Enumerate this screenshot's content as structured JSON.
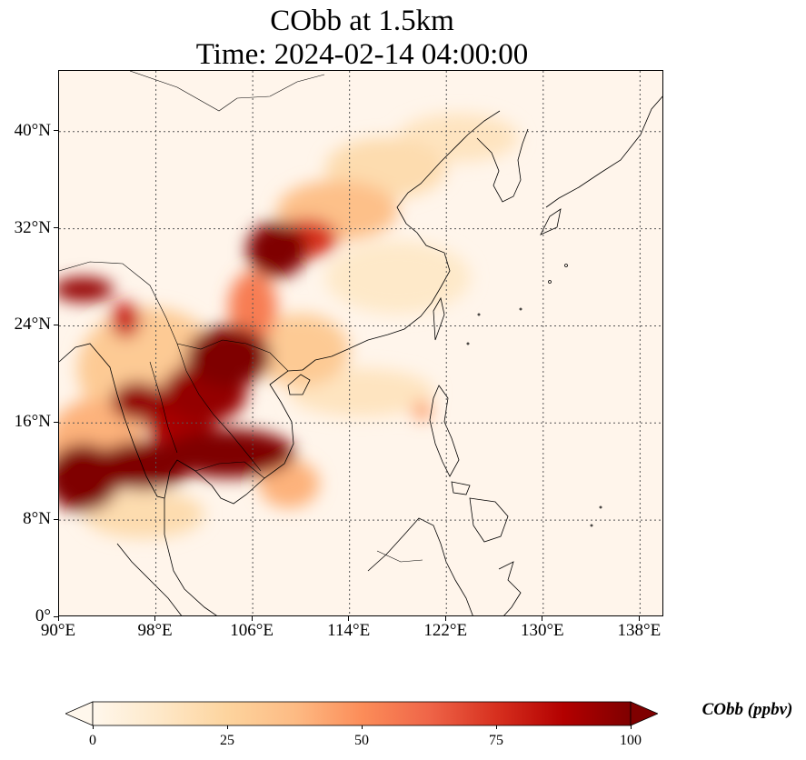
{
  "figure": {
    "title_line1": "CObb at 1.5km",
    "title_line2": "Time: 2024-02-14 04:00:00"
  },
  "map": {
    "projection": "PlateCarree",
    "lon_range": [
      90,
      140
    ],
    "lat_range": [
      0,
      45
    ],
    "gridlines": "dotted",
    "lat_ticks": [
      {
        "value": 0,
        "label": "0°"
      },
      {
        "value": 8,
        "label": "8°N"
      },
      {
        "value": 16,
        "label": "16°N"
      },
      {
        "value": 24,
        "label": "24°N"
      },
      {
        "value": 32,
        "label": "32°N"
      },
      {
        "value": 40,
        "label": "40°N"
      }
    ],
    "lon_ticks": [
      {
        "value": 90,
        "label": "90°E"
      },
      {
        "value": 98,
        "label": "98°E"
      },
      {
        "value": 106,
        "label": "106°E"
      },
      {
        "value": 114,
        "label": "114°E"
      },
      {
        "value": 122,
        "label": "122°E"
      },
      {
        "value": 130,
        "label": "130°E"
      },
      {
        "value": 138,
        "label": "138°E"
      }
    ],
    "field_regions": [
      {
        "lon": 108,
        "lat": 30.3,
        "rlon": 2.5,
        "rlat": 2.3,
        "value": 100
      },
      {
        "lon": 110.5,
        "lat": 31.2,
        "rlon": 2.5,
        "rlat": 1.6,
        "value": 75
      },
      {
        "lon": 113,
        "lat": 33.5,
        "rlon": 5,
        "rlat": 2.5,
        "value": 35
      },
      {
        "lon": 117,
        "lat": 37,
        "rlon": 5,
        "rlat": 2.5,
        "value": 20
      },
      {
        "lon": 123,
        "lat": 39.5,
        "rlon": 5,
        "rlat": 2,
        "value": 15
      },
      {
        "lon": 106,
        "lat": 25.5,
        "rlon": 2,
        "rlat": 3,
        "value": 55
      },
      {
        "lon": 104,
        "lat": 21.5,
        "rlon": 3.5,
        "rlat": 2.5,
        "value": 100
      },
      {
        "lon": 102,
        "lat": 18.5,
        "rlon": 3.5,
        "rlat": 2.5,
        "value": 95
      },
      {
        "lon": 100,
        "lat": 16.5,
        "rlon": 3,
        "rlat": 2.5,
        "value": 90
      },
      {
        "lon": 96.5,
        "lat": 17.8,
        "rlon": 2.2,
        "rlat": 1.6,
        "value": 95
      },
      {
        "lon": 104,
        "lat": 13.5,
        "rlon": 5.5,
        "rlat": 2,
        "value": 100
      },
      {
        "lon": 97,
        "lat": 12.5,
        "rlon": 4,
        "rlat": 2,
        "value": 100
      },
      {
        "lon": 92,
        "lat": 11.5,
        "rlon": 3,
        "rlat": 2.8,
        "value": 100
      },
      {
        "lon": 92,
        "lat": 27,
        "rlon": 2.5,
        "rlat": 1,
        "value": 95
      },
      {
        "lon": 95.5,
        "lat": 24.5,
        "rlon": 1.2,
        "rlat": 1.5,
        "value": 80
      },
      {
        "lon": 97.5,
        "lat": 20.5,
        "rlon": 6,
        "rlat": 5,
        "value": 30
      },
      {
        "lon": 110,
        "lat": 22,
        "rlon": 4,
        "rlat": 3,
        "value": 30
      },
      {
        "lon": 115,
        "lat": 18.5,
        "rlon": 6,
        "rlat": 2,
        "value": 15
      },
      {
        "lon": 120,
        "lat": 17,
        "rlon": 0.8,
        "rlat": 0.8,
        "value": 45
      },
      {
        "lon": 93,
        "lat": 14,
        "rlon": 4,
        "rlat": 4,
        "value": 40
      },
      {
        "lon": 97,
        "lat": 8.5,
        "rlon": 5,
        "rlat": 2,
        "value": 20
      },
      {
        "lon": 109,
        "lat": 11,
        "rlon": 2.5,
        "rlat": 2,
        "value": 40
      },
      {
        "lon": 118,
        "lat": 28,
        "rlon": 6,
        "rlat": 3,
        "value": 12
      }
    ]
  },
  "colorbar": {
    "label": "CObb (ppbv)",
    "min": 0,
    "max": 100,
    "extend": "both",
    "cmap": "OrRd",
    "colors": [
      "#fff7ec",
      "#fee8c8",
      "#fdd49e",
      "#fdbb84",
      "#fc8d59",
      "#ef6548",
      "#d7301f",
      "#b30000",
      "#7f0000"
    ],
    "ticks": [
      {
        "value": 0,
        "label": "0"
      },
      {
        "value": 25,
        "label": "25"
      },
      {
        "value": 50,
        "label": "50"
      },
      {
        "value": 75,
        "label": "75"
      },
      {
        "value": 100,
        "label": "100"
      }
    ]
  }
}
